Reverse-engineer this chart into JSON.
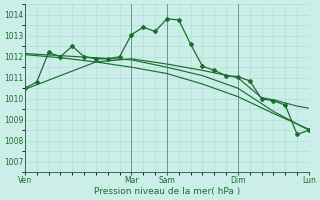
{
  "xlabel": "Pression niveau de la mer( hPa )",
  "background_color": "#cceee8",
  "grid_color": "#aaddd6",
  "line_color": "#1a6e2e",
  "vline_color": "#2d6b50",
  "ylim": [
    1006.5,
    1014.5
  ],
  "yticks": [
    1007,
    1008,
    1009,
    1010,
    1011,
    1012,
    1013,
    1014
  ],
  "x_tick_labels": [
    "Ven",
    "Mar",
    "Sam",
    "Dim",
    "Lun"
  ],
  "x_tick_positions": [
    0,
    9,
    12,
    18,
    24
  ],
  "vline_positions": [
    9,
    12,
    18,
    24
  ],
  "xlim": [
    0,
    24
  ],
  "series": [
    {
      "x": [
        0,
        1,
        2,
        3,
        4,
        5,
        6,
        7,
        8,
        9,
        10,
        11,
        12,
        13,
        14,
        15,
        16,
        17,
        18,
        19,
        20,
        21,
        22,
        23,
        24
      ],
      "y": [
        1010.5,
        1010.8,
        1012.2,
        1012.0,
        1012.5,
        1012.0,
        1011.9,
        1011.9,
        1012.0,
        1013.05,
        1013.4,
        1013.2,
        1013.8,
        1013.75,
        1012.6,
        1011.55,
        1011.35,
        1011.1,
        1011.05,
        1010.85,
        1010.0,
        1009.9,
        1009.7,
        1008.3,
        1008.5
      ],
      "marker": "D",
      "markersize": 2.0,
      "linewidth": 0.9
    },
    {
      "x": [
        0,
        3,
        6,
        9,
        12,
        15,
        18,
        21,
        24
      ],
      "y": [
        1012.15,
        1012.05,
        1011.95,
        1011.85,
        1011.5,
        1011.1,
        1010.5,
        1009.4,
        1008.5
      ],
      "marker": null,
      "markersize": 0,
      "linewidth": 0.85
    },
    {
      "x": [
        0,
        3,
        6,
        9,
        12,
        15,
        18,
        21,
        24
      ],
      "y": [
        1012.1,
        1011.95,
        1011.75,
        1011.5,
        1011.2,
        1010.7,
        1010.1,
        1009.3,
        1008.55
      ],
      "marker": null,
      "markersize": 0,
      "linewidth": 0.85
    },
    {
      "x": [
        0,
        3,
        6,
        9,
        12,
        15,
        18,
        20,
        21,
        22,
        23,
        24
      ],
      "y": [
        1010.45,
        1011.1,
        1011.75,
        1011.9,
        1011.65,
        1011.35,
        1011.0,
        1010.05,
        1009.95,
        1009.8,
        1009.65,
        1009.55
      ],
      "marker": null,
      "markersize": 0,
      "linewidth": 0.85
    }
  ]
}
